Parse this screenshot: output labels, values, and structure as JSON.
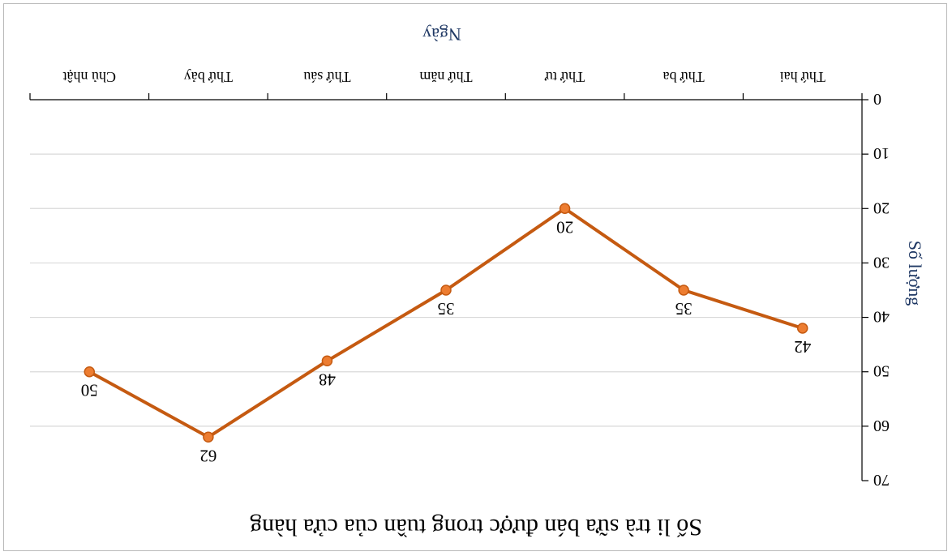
{
  "chart_data": {
    "type": "line",
    "title": "Số li trà sữa bán được trong tuần của cửa hàng",
    "xlabel": "Ngày",
    "ylabel": "Số lượng",
    "categories": [
      "Thứ hai",
      "Thứ ba",
      "Thứ tư",
      "Thứ năm",
      "Thứ sáu",
      "Thứ bảy",
      "Chủ nhật"
    ],
    "series": [
      {
        "values": [
          42,
          35,
          20,
          35,
          48,
          62,
          50
        ]
      }
    ],
    "data_labels": [
      "42",
      "35",
      "20",
      "35",
      "48",
      "62",
      "50"
    ],
    "ylim": [
      0,
      70
    ],
    "y_ticks": [
      "0",
      "10",
      "20",
      "30",
      "40",
      "50",
      "60",
      "70"
    ],
    "grid": true,
    "orientation": "rotated-180",
    "colors": {
      "line": "#c55a11",
      "marker": "#ed7d31",
      "grid": "#d9d9d9",
      "axis": "#000000"
    }
  }
}
